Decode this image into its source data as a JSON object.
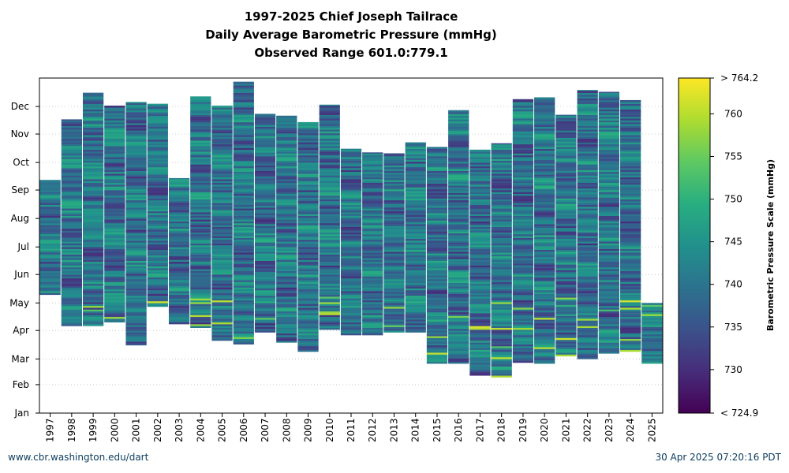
{
  "chart_data": {
    "type": "heatmap",
    "title": "1997-2025 Chief Joseph Tailrace",
    "subtitle": "Daily Average Barometric Pressure (mmHg)",
    "subtitle2": "Observed Range 601.0:779.1",
    "x_label": "",
    "y_label": "",
    "years": [
      "1997",
      "1998",
      "1999",
      "2000",
      "2001",
      "2002",
      "2003",
      "2004",
      "2005",
      "2006",
      "2007",
      "2008",
      "2009",
      "2010",
      "2011",
      "2012",
      "2013",
      "2014",
      "2015",
      "2016",
      "2017",
      "2018",
      "2019",
      "2020",
      "2021",
      "2022",
      "2023",
      "2024",
      "2025"
    ],
    "months": [
      "Jan",
      "Feb",
      "Mar",
      "Apr",
      "May",
      "Jun",
      "Jul",
      "Aug",
      "Sep",
      "Oct",
      "Nov",
      "Dec"
    ],
    "y_range_days": [
      1,
      366
    ],
    "grid": true,
    "coverage_day_of_year": [
      {
        "year": "1997",
        "start": 130,
        "end": 254
      },
      {
        "year": "1998",
        "start": 96,
        "end": 320
      },
      {
        "year": "1999",
        "start": 96,
        "end": 349
      },
      {
        "year": "2000",
        "start": 100,
        "end": 335
      },
      {
        "year": "2001",
        "start": 75,
        "end": 339
      },
      {
        "year": "2002",
        "start": 117,
        "end": 337
      },
      {
        "year": "2003",
        "start": 98,
        "end": 256
      },
      {
        "year": "2004",
        "start": 94,
        "end": 345
      },
      {
        "year": "2005",
        "start": 80,
        "end": 335
      },
      {
        "year": "2006",
        "start": 76,
        "end": 361
      },
      {
        "year": "2007",
        "start": 89,
        "end": 326
      },
      {
        "year": "2008",
        "start": 78,
        "end": 324
      },
      {
        "year": "2009",
        "start": 68,
        "end": 317
      },
      {
        "year": "2010",
        "start": 92,
        "end": 336
      },
      {
        "year": "2011",
        "start": 86,
        "end": 288
      },
      {
        "year": "2012",
        "start": 86,
        "end": 284
      },
      {
        "year": "2013",
        "start": 89,
        "end": 283
      },
      {
        "year": "2014",
        "start": 89,
        "end": 295
      },
      {
        "year": "2015",
        "start": 55,
        "end": 290
      },
      {
        "year": "2016",
        "start": 55,
        "end": 330
      },
      {
        "year": "2017",
        "start": 42,
        "end": 287
      },
      {
        "year": "2018",
        "start": 40,
        "end": 294
      },
      {
        "year": "2019",
        "start": 56,
        "end": 342
      },
      {
        "year": "2020",
        "start": 55,
        "end": 344
      },
      {
        "year": "2021",
        "start": 63,
        "end": 325
      },
      {
        "year": "2022",
        "start": 60,
        "end": 352
      },
      {
        "year": "2023",
        "start": 66,
        "end": 350
      },
      {
        "year": "2024",
        "start": 68,
        "end": 341
      },
      {
        "year": "2025",
        "start": 55,
        "end": 120
      }
    ],
    "colorbar": {
      "label": "Barometric Pressure Scale (mmHg)",
      "colormap": "viridis",
      "min": 724.9,
      "max": 764.2,
      "ticks": [
        730,
        735,
        740,
        745,
        750,
        755,
        760
      ],
      "max_label": "> 764.2",
      "min_label": "< 724.9"
    }
  },
  "footer": {
    "left": "www.cbr.washington.edu/dart",
    "right": "30 Apr 2025 07:20:16 PDT"
  }
}
